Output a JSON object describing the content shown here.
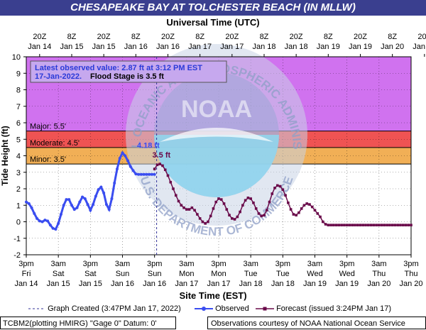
{
  "header": {
    "title": "CHESAPEAKE BAY AT TOLCHESTER BEACH (IN MLLW)"
  },
  "chart_data": {
    "type": "line",
    "top_axis_title": "Universal Time (UTC)",
    "bottom_axis_title": "Site Time (EST)",
    "ylabel": "Tide Height (ft)",
    "ylim": [
      -2,
      10
    ],
    "yticks": [
      "-2",
      "-1",
      "0",
      "1",
      "2",
      "3",
      "4",
      "5",
      "6",
      "7",
      "8",
      "9",
      "10"
    ],
    "xlim": [
      "Jan 14 3pm",
      "Jan 20 3pm"
    ],
    "top_ticks": [
      {
        "l1": "20Z",
        "l2": "Jan 14"
      },
      {
        "l1": "8Z",
        "l2": "Jan 15"
      },
      {
        "l1": "20Z",
        "l2": "Jan 15"
      },
      {
        "l1": "8Z",
        "l2": "Jan 16"
      },
      {
        "l1": "20Z",
        "l2": "Jan 16"
      },
      {
        "l1": "8Z",
        "l2": "Jan 17"
      },
      {
        "l1": "20Z",
        "l2": "Jan 17"
      },
      {
        "l1": "8Z",
        "l2": "Jan 18"
      },
      {
        "l1": "20Z",
        "l2": "Jan 18"
      },
      {
        "l1": "8Z",
        "l2": "Jan 19"
      },
      {
        "l1": "20Z",
        "l2": "Jan 19"
      },
      {
        "l1": "8Z",
        "l2": "Jan 20"
      },
      {
        "l1": "20Z",
        "l2": "Jan 20"
      }
    ],
    "bottom_ticks": [
      {
        "l1": "3pm",
        "l2": "Fri",
        "l3": "Jan 14"
      },
      {
        "l1": "3am",
        "l2": "Sat",
        "l3": "Jan 15"
      },
      {
        "l1": "3pm",
        "l2": "Sat",
        "l3": "Jan 15"
      },
      {
        "l1": "3am",
        "l2": "Sun",
        "l3": "Jan 16"
      },
      {
        "l1": "3pm",
        "l2": "Sun",
        "l3": "Jan 16"
      },
      {
        "l1": "3am",
        "l2": "Mon",
        "l3": "Jan 17"
      },
      {
        "l1": "3pm",
        "l2": "Mon",
        "l3": "Jan 17"
      },
      {
        "l1": "3am",
        "l2": "Tue",
        "l3": "Jan 18"
      },
      {
        "l1": "3pm",
        "l2": "Tue",
        "l3": "Jan 18"
      },
      {
        "l1": "3am",
        "l2": "Wed",
        "l3": "Jan 19"
      },
      {
        "l1": "3pm",
        "l2": "Wed",
        "l3": "Jan 19"
      },
      {
        "l1": "3am",
        "l2": "Thu",
        "l3": "Jan 20"
      },
      {
        "l1": "3pm",
        "l2": "Thu",
        "l3": "Jan 20"
      }
    ],
    "flood_bands": [
      {
        "name": "Major",
        "label": "Major: 5.5'",
        "from": 5.5,
        "to": 10,
        "color": "#cc66ee"
      },
      {
        "name": "Moderate",
        "label": "Moderate: 4.5'",
        "from": 4.5,
        "to": 5.5,
        "color": "#ee4444"
      },
      {
        "name": "Minor",
        "label": "Minor: 3.5'",
        "from": 3.5,
        "to": 4.5,
        "color": "#f0a848"
      }
    ],
    "graph_created_hours": 48.78,
    "annotations": {
      "latest_line1": "Latest observed value: 2.87 ft at 3:12 PM EST",
      "latest_line2a": "17-Jan-2022.",
      "latest_line2b": "Flood Stage is 3.5 ft",
      "peak_label": "4.18 ft",
      "peak_hours": 43,
      "peak_value": 4.18,
      "forecast_peak_label": "3.5 ft",
      "forecast_peak_hours": 49.5,
      "forecast_peak_value": 3.5
    },
    "series": [
      {
        "name": "Observed",
        "color": "#3a4df0",
        "x": [
          0,
          1,
          2,
          3,
          4,
          5,
          6,
          7,
          8,
          9,
          10,
          11,
          12,
          13,
          14,
          15,
          16,
          17,
          18,
          19,
          20,
          21,
          22,
          23,
          24,
          25,
          26,
          27,
          28,
          29,
          30,
          31,
          32,
          33,
          34,
          35,
          36,
          37,
          38,
          39,
          40,
          41,
          42,
          43,
          44,
          45,
          46,
          47,
          48
        ],
        "values": [
          1.2,
          1.1,
          0.85,
          0.5,
          0.2,
          0.05,
          0.0,
          0.1,
          0.05,
          -0.2,
          -0.4,
          -0.45,
          -0.1,
          0.45,
          1.0,
          1.35,
          1.35,
          1.0,
          0.75,
          0.85,
          1.2,
          1.5,
          1.4,
          1.05,
          0.7,
          1.05,
          1.55,
          1.95,
          2.1,
          1.75,
          1.05,
          0.75,
          1.4,
          2.35,
          3.2,
          3.85,
          4.18,
          4.0,
          3.7,
          3.35,
          3.1,
          2.9,
          2.87,
          2.87,
          2.87,
          2.87,
          2.87,
          2.87,
          2.87
        ]
      },
      {
        "name": "Forecast",
        "color": "#6a0a4a",
        "x": [
          48,
          49,
          50,
          51,
          52,
          53,
          54,
          55,
          56,
          57,
          58,
          59,
          60,
          61,
          62,
          63,
          64,
          65,
          66,
          67,
          68,
          69,
          70,
          71,
          72,
          73,
          74,
          75,
          76,
          77,
          78,
          79,
          80,
          81,
          82,
          83,
          84,
          85,
          86,
          87,
          88,
          89,
          90,
          91,
          92,
          93,
          94,
          95,
          96,
          97,
          98,
          99,
          100,
          101,
          102,
          103,
          104,
          105,
          106,
          107,
          108,
          109,
          110,
          111,
          112,
          113,
          114,
          115,
          116,
          117,
          118,
          119,
          120,
          121,
          122,
          123,
          124,
          125,
          126,
          127,
          128,
          129,
          130,
          131,
          132,
          133,
          134,
          135,
          136,
          137,
          138,
          139,
          140,
          141,
          142,
          143,
          144
        ],
        "values": [
          3.2,
          3.45,
          3.5,
          3.4,
          3.15,
          2.8,
          2.4,
          2.0,
          1.6,
          1.25,
          1.0,
          0.85,
          0.75,
          0.75,
          0.85,
          0.7,
          0.45,
          0.2,
          0.0,
          -0.1,
          0.0,
          0.35,
          0.8,
          1.2,
          1.4,
          1.35,
          1.1,
          0.75,
          0.4,
          0.2,
          0.15,
          0.3,
          0.6,
          1.0,
          1.3,
          1.45,
          1.4,
          1.15,
          0.8,
          0.5,
          0.35,
          0.4,
          0.7,
          1.2,
          1.7,
          2.05,
          2.2,
          2.15,
          1.95,
          1.6,
          1.15,
          0.75,
          0.45,
          0.4,
          0.55,
          0.8,
          1.0,
          1.1,
          1.05,
          0.9,
          0.7,
          0.5,
          0.3,
          0.0,
          -0.15,
          -0.2,
          -0.2,
          -0.2,
          -0.2,
          -0.2,
          -0.2,
          -0.2,
          -0.2,
          -0.2,
          -0.2,
          -0.2,
          -0.2,
          -0.2,
          -0.2,
          -0.2,
          -0.2,
          -0.2,
          -0.2,
          -0.2,
          -0.2,
          -0.2,
          -0.2,
          -0.2,
          -0.2,
          -0.2,
          -0.2,
          -0.2,
          -0.2,
          -0.2,
          -0.2,
          -0.2,
          -0.2
        ]
      }
    ],
    "legend": {
      "graph_created": "Graph Created (3:47PM Jan 17, 2022)",
      "observed": "Observed",
      "forecast": "Forecast (issued 3:24PM Jan 17)"
    },
    "watermark": {
      "ring_text": "NATIONAL OCEANIC AND ATMOSPHERIC ADMINISTRATION",
      "center_text": "NOAA",
      "bottom_text": "U.S. DEPARTMENT OF COMMERCE"
    }
  },
  "footer": {
    "left": "TCBM2(plotting HMIRG) \"Gage 0\" Datum: 0'",
    "right": "Observations courtesy of NOAA National Ocean Service"
  }
}
